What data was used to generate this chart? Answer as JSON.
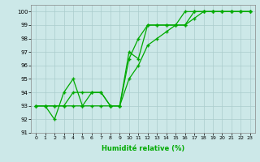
{
  "xlabel": "Humidité relative (%)",
  "bg_color": "#cce8e8",
  "grid_color": "#aacccc",
  "line_color": "#00aa00",
  "xlim": [
    -0.5,
    23.5
  ],
  "ylim": [
    91,
    100.5
  ],
  "yticks": [
    91,
    92,
    93,
    94,
    95,
    96,
    97,
    98,
    99,
    100
  ],
  "xticks": [
    0,
    1,
    2,
    3,
    4,
    5,
    6,
    7,
    8,
    9,
    10,
    11,
    12,
    13,
    14,
    15,
    16,
    17,
    18,
    19,
    20,
    21,
    22,
    23
  ],
  "series": [
    [
      93,
      93,
      92,
      94,
      95,
      93,
      94,
      94,
      93,
      93,
      96.5,
      98,
      99,
      99,
      99,
      99,
      100,
      100,
      100,
      100,
      100,
      100,
      100,
      100
    ],
    [
      93,
      93,
      93,
      93,
      94,
      94,
      94,
      94,
      93,
      93,
      97,
      96.5,
      99,
      99,
      99,
      99,
      99,
      100,
      100,
      100,
      100,
      100,
      100,
      100
    ],
    [
      93,
      93,
      93,
      93,
      93,
      93,
      93,
      93,
      93,
      93,
      95,
      96,
      97.5,
      98,
      98.5,
      99,
      99,
      99.5,
      100,
      100,
      100,
      100,
      100,
      100
    ]
  ]
}
